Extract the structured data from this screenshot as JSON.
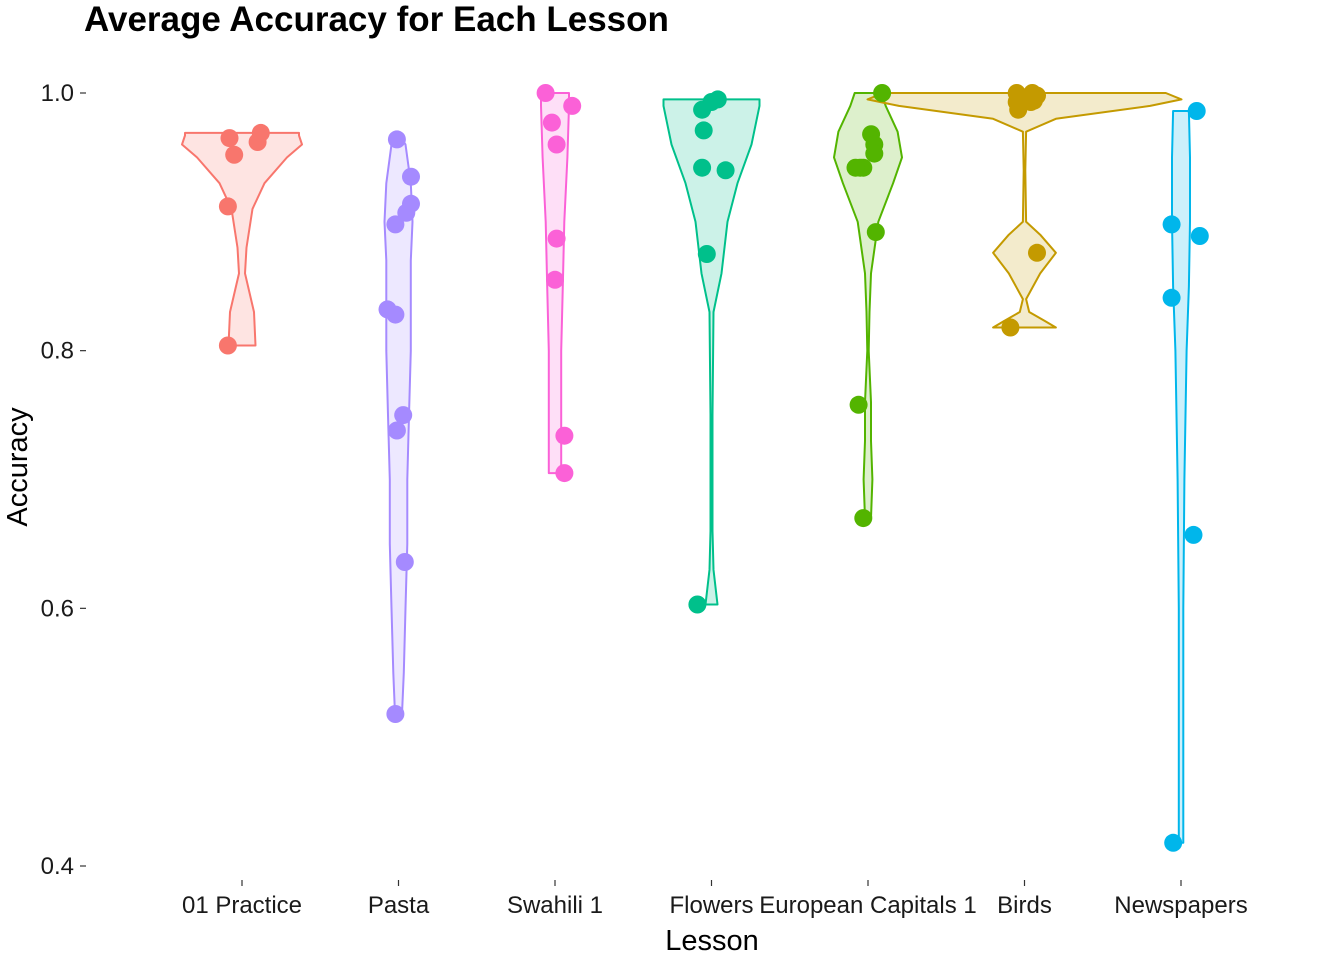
{
  "chart_data": {
    "type": "violin",
    "title": "Average Accuracy for Each Lesson",
    "xlabel": "Lesson",
    "ylabel": "Accuracy",
    "ylim": [
      0.4,
      1.0
    ],
    "yticks": [
      0.4,
      0.6,
      0.8,
      1.0
    ],
    "ytick_labels": [
      "0.4",
      "0.6",
      "0.8",
      "1.0"
    ],
    "grid": false,
    "legend": "none",
    "categories": [
      "01 Practice",
      "Pasta",
      "Swahili 1",
      "Flowers",
      "European Capitals 1",
      "Birds",
      "Newspapers"
    ],
    "series": [
      {
        "category": "01 Practice",
        "color": "#F8766D",
        "points": [
          [
            -0.08,
            0.965
          ],
          [
            0.1,
            0.962
          ],
          [
            0.12,
            0.969
          ],
          [
            -0.05,
            0.952
          ],
          [
            -0.09,
            0.912
          ],
          [
            -0.09,
            0.804
          ]
        ],
        "violin": [
          [
            0.804,
            0.09
          ],
          [
            0.83,
            0.08
          ],
          [
            0.86,
            0.02
          ],
          [
            0.88,
            0.03
          ],
          [
            0.91,
            0.07
          ],
          [
            0.93,
            0.15
          ],
          [
            0.95,
            0.3
          ],
          [
            0.96,
            0.4
          ],
          [
            0.967,
            0.38
          ],
          [
            0.969,
            0.38
          ]
        ]
      },
      {
        "category": "Pasta",
        "color": "#A58AFF",
        "points": [
          [
            -0.01,
            0.964
          ],
          [
            0.08,
            0.935
          ],
          [
            0.08,
            0.914
          ],
          [
            0.05,
            0.907
          ],
          [
            -0.02,
            0.898
          ],
          [
            -0.07,
            0.832
          ],
          [
            -0.02,
            0.828
          ],
          [
            0.03,
            0.75
          ],
          [
            -0.01,
            0.738
          ],
          [
            0.04,
            0.636
          ],
          [
            -0.02,
            0.518
          ]
        ],
        "violin": [
          [
            0.518,
            0.02
          ],
          [
            0.55,
            0.03
          ],
          [
            0.6,
            0.04
          ],
          [
            0.65,
            0.05
          ],
          [
            0.7,
            0.05
          ],
          [
            0.75,
            0.06
          ],
          [
            0.8,
            0.07
          ],
          [
            0.83,
            0.07
          ],
          [
            0.87,
            0.07
          ],
          [
            0.9,
            0.08
          ],
          [
            0.93,
            0.07
          ],
          [
            0.96,
            0.04
          ],
          [
            0.964,
            0.02
          ]
        ]
      },
      {
        "category": "Swahili 1",
        "color": "#FB61D7",
        "points": [
          [
            -0.06,
            1.0
          ],
          [
            0.11,
            0.99
          ],
          [
            -0.02,
            0.977
          ],
          [
            0.01,
            0.96
          ],
          [
            0.01,
            0.887
          ],
          [
            0.0,
            0.855
          ],
          [
            0.06,
            0.734
          ],
          [
            0.06,
            0.705
          ]
        ],
        "violin": [
          [
            0.705,
            0.04
          ],
          [
            0.75,
            0.04
          ],
          [
            0.8,
            0.04
          ],
          [
            0.85,
            0.05
          ],
          [
            0.9,
            0.06
          ],
          [
            0.95,
            0.08
          ],
          [
            0.99,
            0.09
          ],
          [
            1.0,
            0.09
          ]
        ]
      },
      {
        "category": "Flowers",
        "color": "#00C08B",
        "points": [
          [
            -0.06,
            0.987
          ],
          [
            0.0,
            0.993
          ],
          [
            0.04,
            0.995
          ],
          [
            -0.05,
            0.971
          ],
          [
            -0.06,
            0.942
          ],
          [
            0.09,
            0.94
          ],
          [
            -0.03,
            0.875
          ],
          [
            -0.09,
            0.603
          ]
        ],
        "violin": [
          [
            0.603,
            0.03
          ],
          [
            0.63,
            0.01
          ],
          [
            0.66,
            0.005
          ],
          [
            0.75,
            0.005
          ],
          [
            0.83,
            0.01
          ],
          [
            0.86,
            0.05
          ],
          [
            0.9,
            0.08
          ],
          [
            0.93,
            0.13
          ],
          [
            0.96,
            0.2
          ],
          [
            0.99,
            0.24
          ],
          [
            0.995,
            0.24
          ]
        ]
      },
      {
        "category": "European Capitals 1",
        "color": "#53B400",
        "points": [
          [
            0.09,
            1.0
          ],
          [
            0.02,
            0.968
          ],
          [
            0.04,
            0.96
          ],
          [
            0.04,
            0.953
          ],
          [
            -0.05,
            0.942
          ],
          [
            -0.03,
            0.942
          ],
          [
            -0.08,
            0.942
          ],
          [
            0.05,
            0.892
          ],
          [
            -0.06,
            0.758
          ],
          [
            -0.03,
            0.67
          ]
        ],
        "violin": [
          [
            0.67,
            0.02
          ],
          [
            0.7,
            0.03
          ],
          [
            0.73,
            0.02
          ],
          [
            0.76,
            0.02
          ],
          [
            0.8,
            0.005
          ],
          [
            0.83,
            0.01
          ],
          [
            0.86,
            0.02
          ],
          [
            0.9,
            0.07
          ],
          [
            0.93,
            0.17
          ],
          [
            0.95,
            0.23
          ],
          [
            0.97,
            0.2
          ],
          [
            0.99,
            0.12
          ],
          [
            1.0,
            0.09
          ]
        ]
      },
      {
        "category": "Birds",
        "color": "#C49A00",
        "points": [
          [
            -0.05,
            1.0
          ],
          [
            0.05,
            1.0
          ],
          [
            0.08,
            0.998
          ],
          [
            0.04,
            0.993
          ],
          [
            0.06,
            0.994
          ],
          [
            -0.05,
            0.993
          ],
          [
            -0.04,
            0.987
          ],
          [
            0.08,
            0.876
          ],
          [
            -0.09,
            0.818
          ]
        ],
        "violin": [
          [
            0.818,
            0.2
          ],
          [
            0.823,
            0.13
          ],
          [
            0.83,
            0.03
          ],
          [
            0.84,
            0.01
          ],
          [
            0.86,
            0.1
          ],
          [
            0.876,
            0.2
          ],
          [
            0.89,
            0.1
          ],
          [
            0.9,
            0.01
          ],
          [
            0.94,
            0.005
          ],
          [
            0.97,
            0.01
          ],
          [
            0.98,
            0.2
          ],
          [
            0.99,
            0.8
          ],
          [
            0.995,
            1.0
          ],
          [
            1.0,
            0.9
          ]
        ]
      },
      {
        "category": "Newspapers",
        "color": "#00B6EB",
        "points": [
          [
            0.1,
            0.986
          ],
          [
            -0.06,
            0.898
          ],
          [
            0.12,
            0.889
          ],
          [
            -0.06,
            0.841
          ],
          [
            0.08,
            0.657
          ],
          [
            -0.05,
            0.418
          ]
        ],
        "violin": [
          [
            0.418,
            0.02
          ],
          [
            0.5,
            0.02
          ],
          [
            0.6,
            0.02
          ],
          [
            0.7,
            0.03
          ],
          [
            0.8,
            0.05
          ],
          [
            0.85,
            0.07
          ],
          [
            0.9,
            0.08
          ],
          [
            0.95,
            0.08
          ],
          [
            0.986,
            0.07
          ]
        ]
      }
    ]
  }
}
